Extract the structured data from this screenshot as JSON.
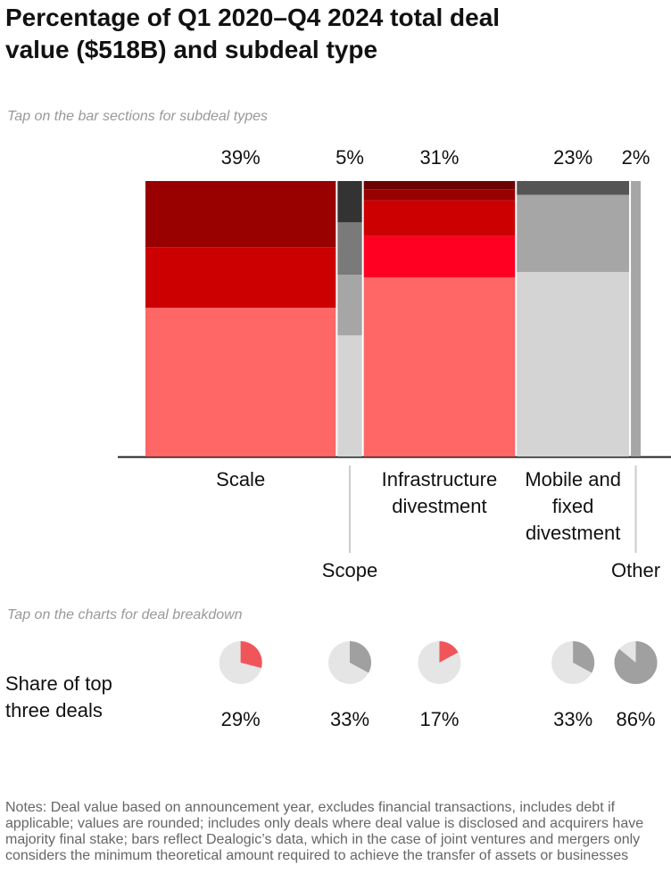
{
  "title": "Percentage of Q1 2020–Q4 2024 total deal value ($518B) and subdeal type",
  "chart_data": {
    "type": "mekko",
    "hint": "Tap on the bar sections for subdeal types",
    "bars": [
      {
        "category": "Scale",
        "share": 39,
        "share_label": "39%",
        "segments": [
          54,
          22,
          24
        ],
        "colors": [
          "#ff6666",
          "#cc0000",
          "#990000"
        ]
      },
      {
        "category": "Scope",
        "share": 5,
        "share_label": "5%",
        "segments": [
          44,
          22,
          19,
          15
        ],
        "colors": [
          "#d4d4d4",
          "#a6a6a6",
          "#7a7a7a",
          "#333333"
        ]
      },
      {
        "category": "Infrastructure divestment",
        "share": 31,
        "share_label": "31%",
        "segments": [
          65,
          15,
          13,
          4,
          3
        ],
        "colors": [
          "#ff6666",
          "#ff0022",
          "#cc0000",
          "#990000",
          "#6e0000"
        ]
      },
      {
        "category": "Mobile and fixed divestment",
        "share": 23,
        "share_label": "23%",
        "segments": [
          67,
          28,
          5
        ],
        "colors": [
          "#d4d4d4",
          "#a6a6a6",
          "#555555"
        ]
      },
      {
        "category": "Other",
        "share": 2,
        "share_label": "2%",
        "segments": [
          100
        ],
        "colors": [
          "#a6a6a6"
        ]
      }
    ],
    "pies": {
      "type": "pie",
      "hint": "Tap on the charts for deal breakdown",
      "label": "Share of top three deals",
      "values": [
        29,
        33,
        17,
        33,
        86
      ],
      "value_labels": [
        "29%",
        "33%",
        "17%",
        "33%",
        "86%"
      ],
      "colors": [
        "#f0555a",
        "#a0a0a0",
        "#f0555a",
        "#a0a0a0",
        "#a0a0a0"
      ],
      "background": "#e5e5e5"
    }
  },
  "notes": "Notes: Deal value based on announcement year, excludes financial transactions, includes debt if applicable; values are rounded; includes only deals where deal value is disclosed and acquirers have majority final stake; bars reflect Dealogic’s data, which in the case of joint ventures and mergers only considers the minimum theoretical amount required to achieve the transfer of assets or businesses"
}
